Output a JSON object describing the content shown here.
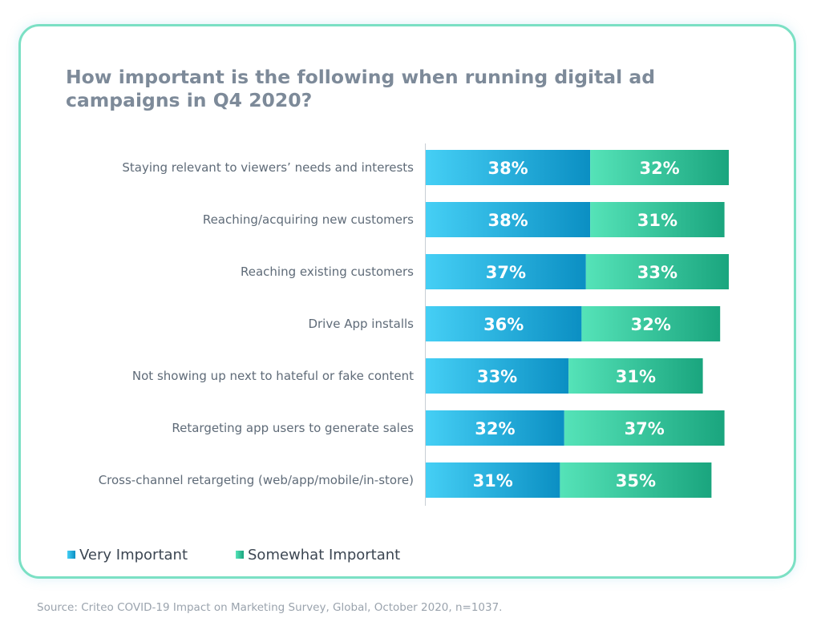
{
  "colors": {
    "very": [
      "#45cff5",
      "#0b8fc3"
    ],
    "somewhat": [
      "#55e3b8",
      "#1aa57e"
    ],
    "axis": "#c8ced4"
  },
  "chart_data": {
    "type": "bar",
    "orientation": "horizontal",
    "stacked": true,
    "title": "How important is the following when running digital ad campaigns in Q4 2020?",
    "categories": [
      "Staying relevant to viewers’ needs and interests",
      "Reaching/acquiring new customers",
      "Reaching existing customers",
      "Drive App installs",
      "Not showing up next to hateful or fake content",
      "Retargeting app users to generate sales",
      "Cross-channel retargeting (web/app/mobile/in-store)"
    ],
    "series": [
      {
        "name": "Very Important",
        "values": [
          38,
          38,
          37,
          36,
          33,
          32,
          31
        ],
        "labels": [
          "38%",
          "38%",
          "37%",
          "36%",
          "33%",
          "32%",
          "31%"
        ]
      },
      {
        "name": "Somewhat Important",
        "values": [
          32,
          31,
          33,
          32,
          31,
          37,
          35
        ],
        "labels": [
          "32%",
          "31%",
          "33%",
          "32%",
          "31%",
          "37%",
          "35%"
        ]
      }
    ],
    "xlim": [
      0,
      70
    ],
    "grid": false,
    "legend": "bottom-left",
    "source": "Source: Criteo COVID-19 Impact on Marketing Survey, Global, October 2020, n=1037."
  }
}
